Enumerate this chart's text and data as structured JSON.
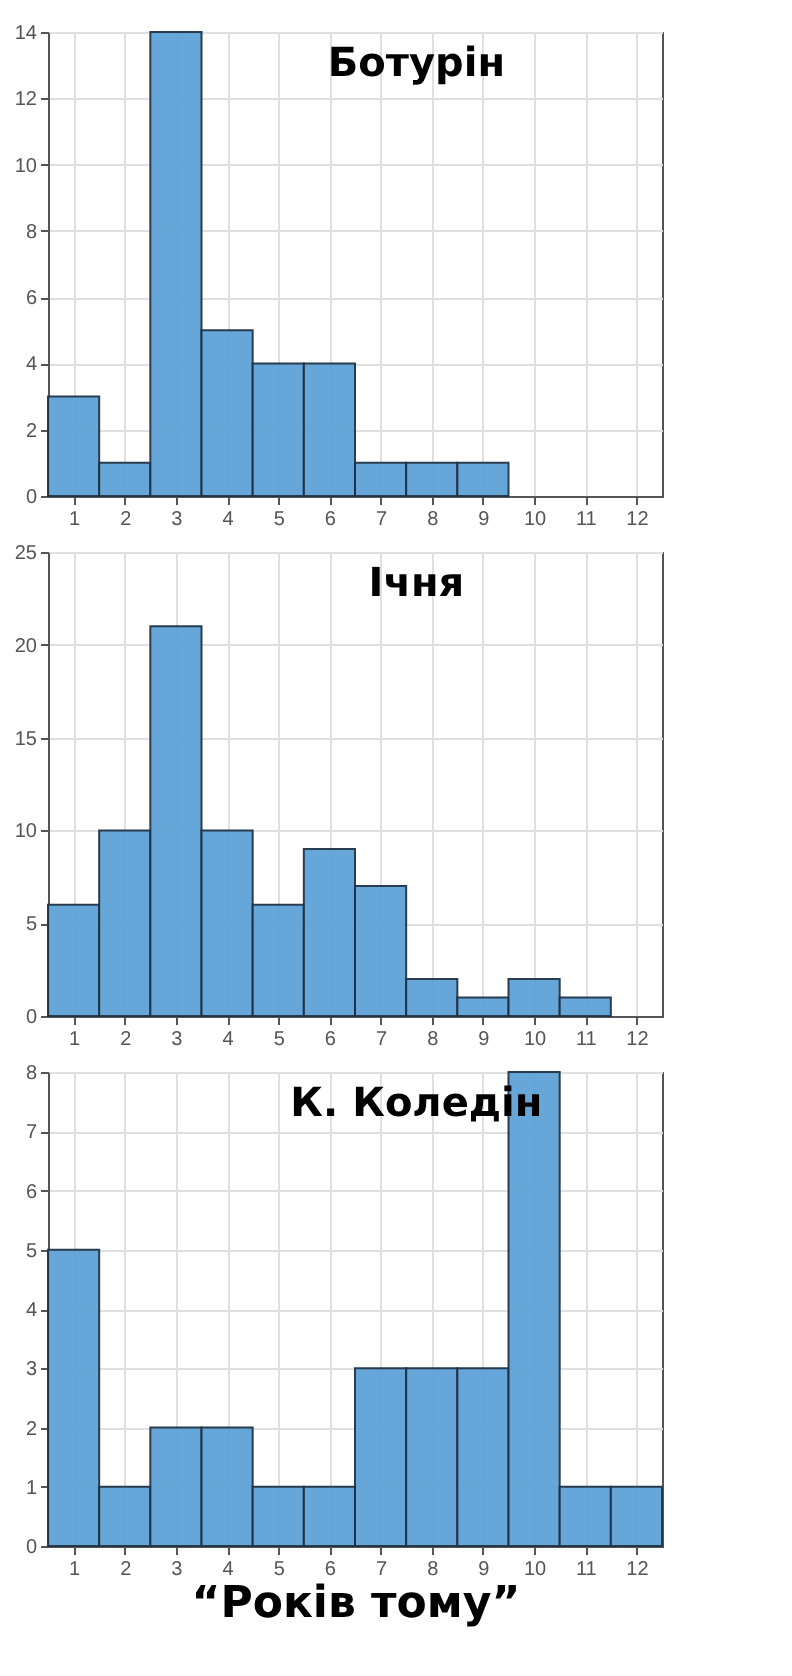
{
  "chart_data": [
    {
      "type": "histogram",
      "title": "Ботурін",
      "bins": [
        0.5,
        1.5,
        2.5,
        3.5,
        4.5,
        5.5,
        6.5,
        7.5,
        8.5,
        9.5
      ],
      "values": [
        3,
        1,
        14,
        5,
        4,
        4,
        1,
        1,
        1
      ],
      "color": "#5fa2d6",
      "xlim": [
        0.5,
        12.5
      ],
      "xticks": [
        1,
        2,
        3,
        4,
        5,
        6,
        7,
        8,
        9,
        10,
        11,
        12
      ],
      "ylim": [
        0,
        14
      ],
      "yticks": [
        0,
        2,
        4,
        6,
        8,
        10,
        12,
        14
      ],
      "grid": true
    },
    {
      "type": "histogram",
      "title": "Ічня",
      "bins": [
        0.5,
        1.5,
        2.5,
        3.5,
        4.5,
        5.5,
        6.5,
        7.5,
        8.5,
        9.5,
        10.5,
        11.5
      ],
      "values": [
        6,
        10,
        21,
        10,
        6,
        9,
        7,
        2,
        1,
        2,
        1
      ],
      "color": "#5fa2d6",
      "xlim": [
        0.5,
        12.5
      ],
      "xticks": [
        1,
        2,
        3,
        4,
        5,
        6,
        7,
        8,
        9,
        10,
        11,
        12
      ],
      "ylim": [
        0,
        25
      ],
      "yticks": [
        0,
        5,
        10,
        15,
        20,
        25
      ],
      "grid": true
    },
    {
      "type": "histogram",
      "title": "К. Коледін",
      "xlabel": "“Років тому”",
      "bins": [
        0.5,
        1.5,
        2.5,
        3.5,
        4.5,
        5.5,
        6.5,
        7.5,
        8.5,
        9.5,
        10.5,
        11.5,
        12.5
      ],
      "values": [
        5,
        1,
        2,
        2,
        1,
        1,
        3,
        3,
        3,
        8,
        1,
        1
      ],
      "color": "#5fa2d6",
      "xlim": [
        0.5,
        12.5
      ],
      "xticks": [
        1,
        2,
        3,
        4,
        5,
        6,
        7,
        8,
        9,
        10,
        11,
        12
      ],
      "ylim": [
        0,
        8
      ],
      "yticks": [
        0,
        1,
        2,
        3,
        4,
        5,
        6,
        7,
        8
      ],
      "grid": true
    }
  ]
}
